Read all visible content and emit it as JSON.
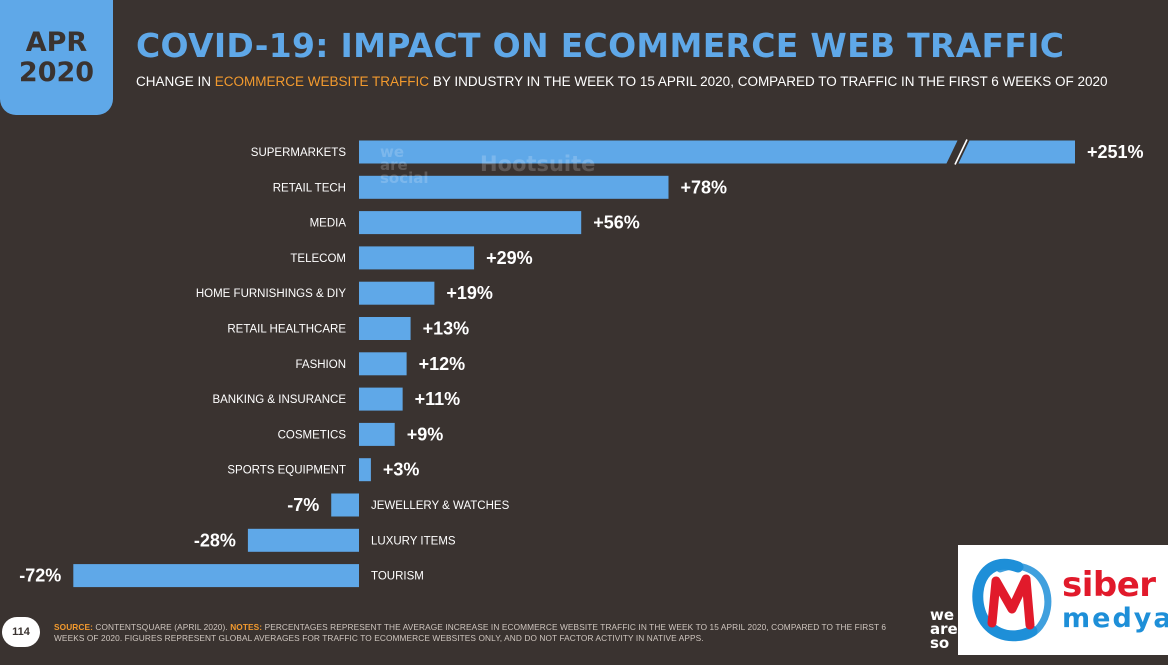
{
  "badge": {
    "month": "APR",
    "year": "2020"
  },
  "header": {
    "title": "COVID-19: IMPACT ON ECOMMERCE WEB TRAFFIC",
    "subtitle_pre": "CHANGE IN",
    "subtitle_highlight": "ECOMMERCE WEBSITE TRAFFIC",
    "subtitle_post": "BY INDUSTRY IN THE WEEK TO 15 APRIL 2020, COMPARED TO TRAFFIC IN THE FIRST 6 WEEKS OF 2020"
  },
  "chart_data": {
    "type": "bar",
    "orientation": "horizontal",
    "categories": [
      "SUPERMARKETS",
      "RETAIL TECH",
      "MEDIA",
      "TELECOM",
      "HOME FURNISHINGS & DIY",
      "RETAIL HEALTHCARE",
      "FASHION",
      "BANKING & INSURANCE",
      "COSMETICS",
      "SPORTS EQUIPMENT",
      "JEWELLERY & WATCHES",
      "LUXURY ITEMS",
      "TOURISM"
    ],
    "values": [
      251,
      78,
      56,
      29,
      19,
      13,
      12,
      11,
      9,
      3,
      -7,
      -28,
      -72
    ],
    "value_labels": [
      "+251%",
      "+78%",
      "+56%",
      "+29%",
      "+19%",
      "+13%",
      "+12%",
      "+11%",
      "+9%",
      "+3%",
      "-7%",
      "-28%",
      "-72%"
    ],
    "axis_break": true,
    "bar_color": "#5fa8e8"
  },
  "footer": {
    "page_number": "114",
    "source_label": "SOURCE:",
    "source_text": "CONTENTSQUARE (APRIL 2020).",
    "notes_label": "NOTES:",
    "notes_text": "PERCENTAGES REPRESENT THE AVERAGE INCREASE IN ECOMMERCE WEBSITE TRAFFIC IN THE WEEK TO 15 APRIL 2020, COMPARED TO THE FIRST 6 WEEKS OF 2020. FIGURES REPRESENT GLOBAL AVERAGES FOR TRAFFIC TO ECOMMERCE WEBSITES ONLY, AND DO NOT FACTOR ACTIVITY IN NATIVE APPS."
  },
  "logos": {
    "we_are_social": [
      "we",
      "are",
      "so"
    ],
    "chart_watermark_left": [
      "we",
      "are",
      "social"
    ],
    "chart_watermark_right": "Hootsuite",
    "overlay_brand_1": "siber",
    "overlay_brand_2": "medya",
    "overlay_brand_1_color": "#e11a2b",
    "overlay_brand_2_color": "#1e8fd8"
  }
}
